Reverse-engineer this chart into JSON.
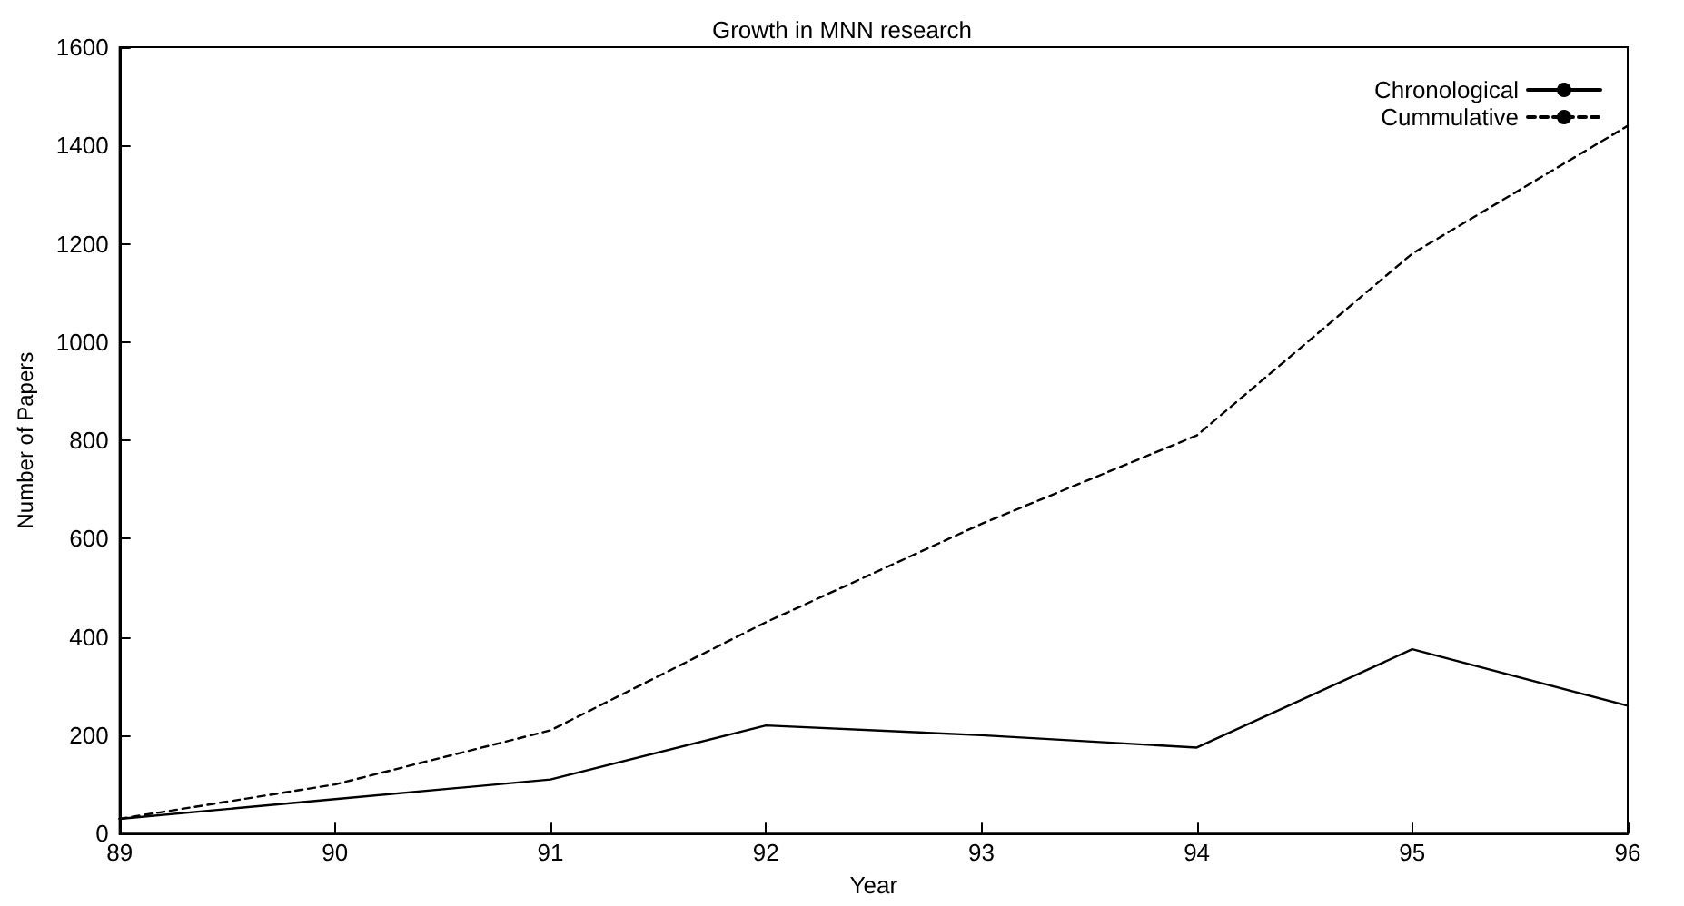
{
  "chart_data": {
    "type": "line",
    "title": "Growth in MNN research",
    "xlabel": "Year",
    "ylabel": "Number of Papers",
    "x": [
      89,
      90,
      91,
      92,
      93,
      94,
      95,
      96
    ],
    "series": [
      {
        "name": "Chronological",
        "color": "#000000",
        "line_style": "solid",
        "values": [
          30,
          70,
          110,
          220,
          200,
          175,
          375,
          260
        ]
      },
      {
        "name": "Cummulative",
        "color": "#000000",
        "line_style": "dashed",
        "values": [
          30,
          100,
          210,
          430,
          630,
          810,
          1180,
          1440
        ]
      }
    ],
    "xlim": [
      89,
      96
    ],
    "xticks": [
      89,
      90,
      91,
      92,
      93,
      94,
      95,
      96
    ],
    "ylim": [
      0,
      1600
    ],
    "yticks": [
      0,
      200,
      400,
      600,
      800,
      1000,
      1200,
      1400,
      1600
    ],
    "grid": false,
    "legend": "top right",
    "marker": "none"
  }
}
